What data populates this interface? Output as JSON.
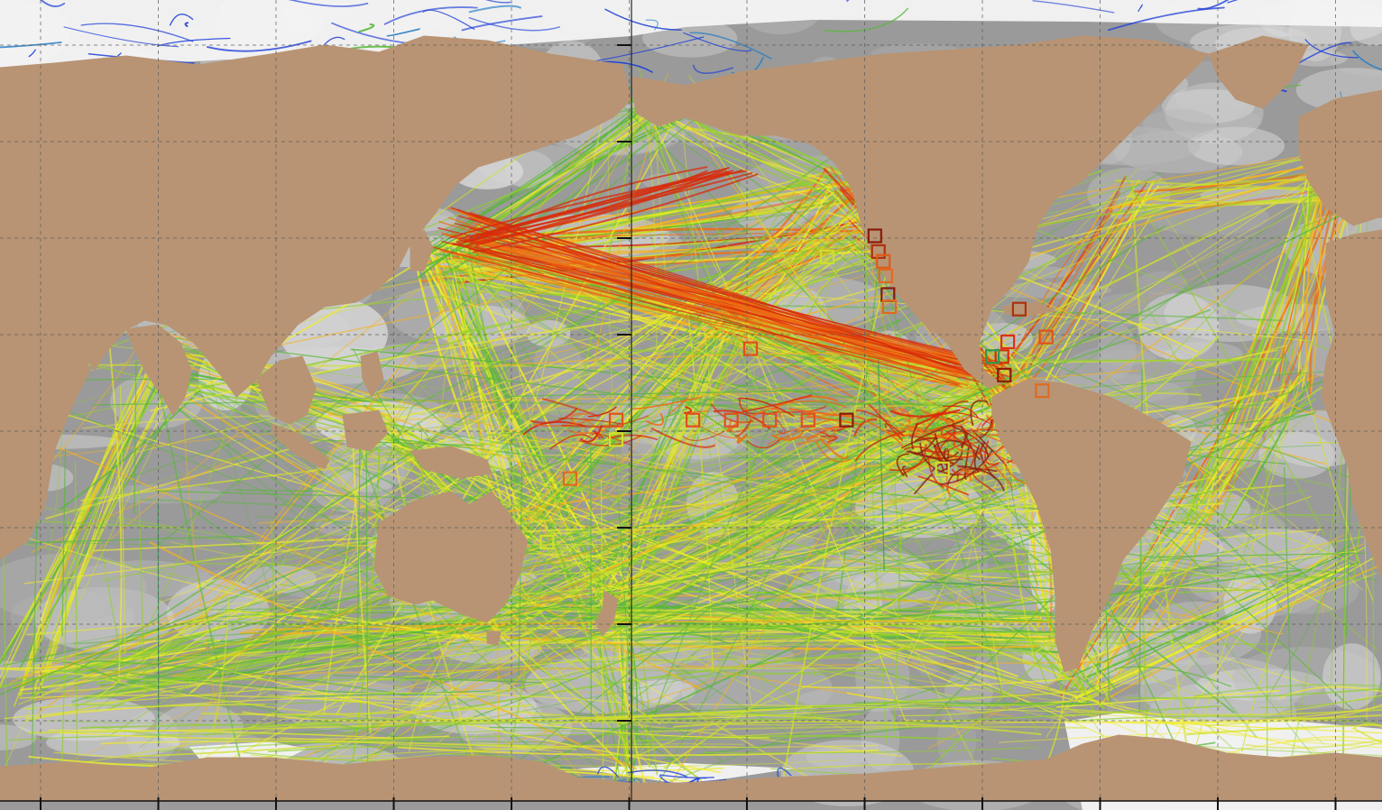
{
  "map": {
    "colors": {
      "ocean_deep": "#9a9a9a",
      "ocean_mid": "#b8b8b8",
      "ocean_shallow": "#d9d9d9",
      "ice": "#f4f4f4",
      "land": "#b89474",
      "grid": "#5a5a5a",
      "tick": "#111111"
    },
    "track_palette": [
      "#1f3fd8",
      "#2a7fc4",
      "#2e9a4e",
      "#58b83a",
      "#8fcf2e",
      "#cfe02a",
      "#f0ec2a",
      "#f6b21c",
      "#ee6a12",
      "#d82a0a",
      "#8a1a0a"
    ],
    "grid": {
      "meridians_count": 12,
      "parallels_count": 8
    },
    "station_markers": [
      {
        "lon": -122.6,
        "lat": 37.7,
        "color": "#8a1a0a"
      },
      {
        "lon": -121.7,
        "lat": 34.5,
        "color": "#b0300c"
      },
      {
        "lon": -120.4,
        "lat": 32.5,
        "color": "#e05a18"
      },
      {
        "lon": -119.8,
        "lat": 29.5,
        "color": "#e06a20"
      },
      {
        "lon": -119.2,
        "lat": 25.7,
        "color": "#8a1a0a"
      },
      {
        "lon": -118.8,
        "lat": 23.2,
        "color": "#e06a20"
      },
      {
        "lon": -135.0,
        "lat": 33.4,
        "color": "#cfe02a"
      },
      {
        "lon": -155.0,
        "lat": 14.6,
        "color": "#e0501a"
      },
      {
        "lon": -85.0,
        "lat": 22.7,
        "color": "#b0300c"
      },
      {
        "lon": -88.0,
        "lat": 16.0,
        "color": "#e0301a"
      },
      {
        "lon": -89.5,
        "lat": 13.0,
        "color": "#d82a0a"
      },
      {
        "lon": -88.9,
        "lat": 9.2,
        "color": "#8a1a0a"
      },
      {
        "lon": -92.0,
        "lat": 13.0,
        "color": "#2e9a4e"
      },
      {
        "lon": -78.0,
        "lat": 17.0,
        "color": "#e0501a"
      },
      {
        "lon": -79.0,
        "lat": 6.0,
        "color": "#e06a20"
      },
      {
        "lon": -140.0,
        "lat": 0.0,
        "color": "#e0501a"
      },
      {
        "lon": -150.0,
        "lat": 0.0,
        "color": "#e0501a"
      },
      {
        "lon": -160.0,
        "lat": 0.0,
        "color": "#e0501a"
      },
      {
        "lon": -170.0,
        "lat": 0.0,
        "color": "#e0501a"
      },
      {
        "lon": 170.0,
        "lat": 0.0,
        "color": "#e0501a"
      },
      {
        "lon": -130.0,
        "lat": 0.0,
        "color": "#8a1a0a"
      },
      {
        "lon": 170.0,
        "lat": -4.0,
        "color": "#cfe02a"
      },
      {
        "lon": 158.0,
        "lat": -12.0,
        "color": "#e06a20"
      },
      {
        "lon": -105.0,
        "lat": -10.0,
        "color": "#cfe02a"
      },
      {
        "lon": 152.0,
        "lat": -25.0,
        "color": "#cfe02a"
      }
    ]
  }
}
